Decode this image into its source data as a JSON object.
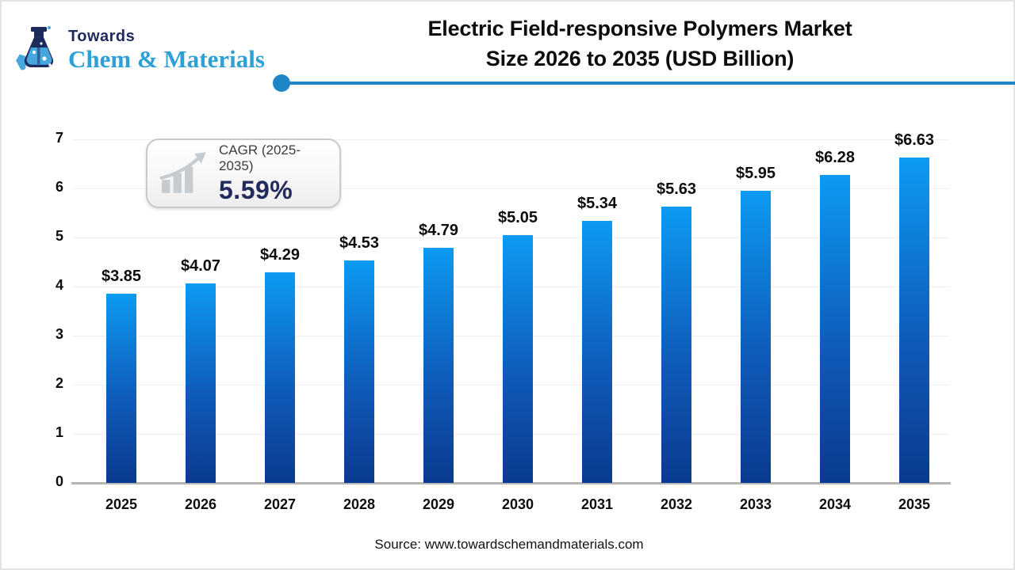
{
  "logo": {
    "top_text": "Towards",
    "bottom_text": "Chem & Materials",
    "top_color": "#1d2b5f",
    "bottom_color": "#2da0d8",
    "icon": "flask-logo-icon"
  },
  "header": {
    "title_line1": "Electric Field-responsive Polymers Market",
    "title_line2": "Size 2026 to 2035 (USD Billion)",
    "divider_color": "#1c86c7"
  },
  "cagr_badge": {
    "label": "CAGR (2025-2035)",
    "value": "5.59%",
    "icon": "growth-trend-icon",
    "value_color": "#232a5c"
  },
  "chart_data": {
    "type": "bar",
    "title": "Electric Field-responsive Polymers Market Size 2026 to 2035 (USD Billion)",
    "categories": [
      "2025",
      "2026",
      "2027",
      "2028",
      "2029",
      "2030",
      "2031",
      "2032",
      "2033",
      "2034",
      "2035"
    ],
    "values": [
      3.85,
      4.07,
      4.29,
      4.53,
      4.79,
      5.05,
      5.34,
      5.63,
      5.95,
      6.28,
      6.63
    ],
    "bar_labels": [
      "$3.85",
      "$4.07",
      "$4.29",
      "$4.53",
      "$4.79",
      "$5.05",
      "$5.34",
      "$5.63",
      "$5.95",
      "$6.28",
      "$6.63"
    ],
    "xlabel": "",
    "ylabel": "",
    "ylim": [
      0,
      7
    ],
    "yticks": [
      0,
      1,
      2,
      3,
      4,
      5,
      6,
      7
    ],
    "grid": true,
    "legend": false,
    "bar_color_top": "#0d9bf2",
    "bar_color_bottom": "#0a3a90"
  },
  "footer": {
    "source": "Source: www.towardschemandmaterials.com"
  }
}
